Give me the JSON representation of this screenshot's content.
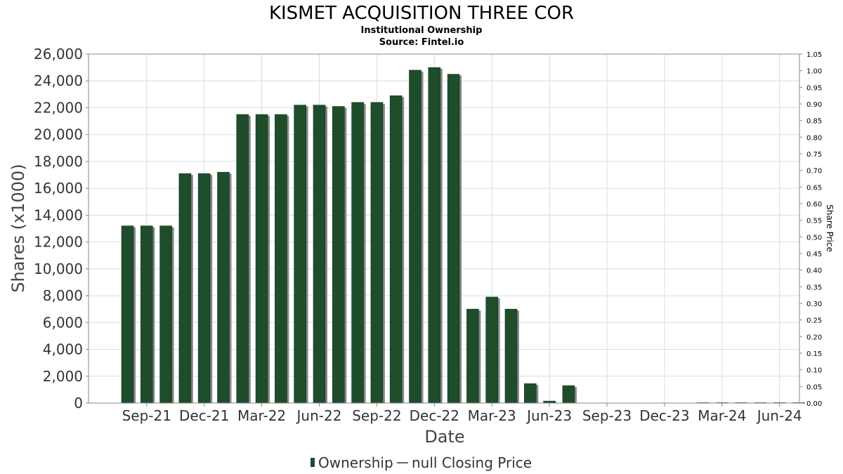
{
  "chart_data": {
    "type": "bar",
    "title": "KISMET ACQUISITION THREE COR",
    "subtitle": "Institutional Ownership",
    "source": "Source: Fintel.io",
    "xlabel": "Date",
    "ylabel": "Shares (x1000)",
    "y2label": "Share Price",
    "ylim": [
      0,
      26000
    ],
    "y_ticks": [
      "0",
      "2,000",
      "4,000",
      "6,000",
      "8,000",
      "10,000",
      "12,000",
      "14,000",
      "16,000",
      "18,000",
      "20,000",
      "22,000",
      "24,000",
      "26,000"
    ],
    "y2lim": [
      0,
      1.05
    ],
    "y2_ticks": [
      "0.00",
      "0.05",
      "0.10",
      "0.15",
      "0.20",
      "0.25",
      "0.30",
      "0.35",
      "0.40",
      "0.45",
      "0.50",
      "0.55",
      "0.60",
      "0.65",
      "0.70",
      "0.75",
      "0.80",
      "0.85",
      "0.90",
      "0.95",
      "1.00",
      "1.05"
    ],
    "x_tick_labels": [
      "Sep-21",
      "Dec-21",
      "Mar-22",
      "Jun-22",
      "Sep-22",
      "Dec-22",
      "Mar-23",
      "Jun-23",
      "Sep-23",
      "Dec-23",
      "Mar-24",
      "Jun-24"
    ],
    "grid": true,
    "legend_position": "bottom",
    "series": [
      {
        "name": "Ownership",
        "color": "#1f4d2b",
        "values": [
          13200,
          13200,
          13200,
          17100,
          17100,
          17200,
          21500,
          21500,
          21500,
          22200,
          22200,
          22100,
          22400,
          22400,
          22900,
          24800,
          25000,
          24500,
          7000,
          7900,
          7000,
          1450,
          150,
          1300,
          0,
          0,
          0,
          0,
          0,
          0,
          30,
          30,
          30,
          30,
          30,
          30
        ]
      },
      {
        "name": "null Closing Price",
        "color": "#333333",
        "values": []
      }
    ]
  }
}
